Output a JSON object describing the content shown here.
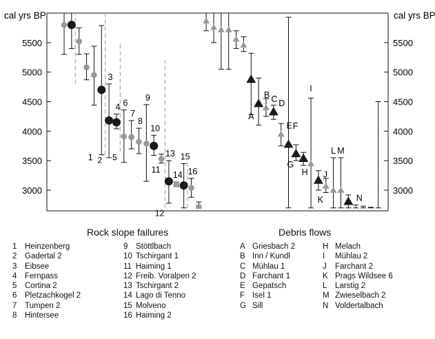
{
  "chart_data": {
    "type": "scatter",
    "y_unit_label": "cal yrs BP",
    "y_ticks": [
      3000,
      3500,
      4000,
      4500,
      5000,
      5500
    ],
    "ylim": [
      2650,
      6000
    ],
    "grid": false,
    "series": [
      {
        "name": "Rock slope failures",
        "points": [
          {
            "label": "",
            "x": 1,
            "y": 5800,
            "lo": 5300,
            "hi": 6000,
            "marker": "gray-circle"
          },
          {
            "label": "",
            "x": 2,
            "y": 5800,
            "lo": 5400,
            "hi": 6000,
            "marker": "black-circle"
          },
          {
            "label": "",
            "x": 3,
            "y": 5520,
            "lo": 5300,
            "hi": 5750,
            "marker": "gray-circle"
          },
          {
            "label": "",
            "x": 4,
            "y": 5080,
            "lo": 4870,
            "hi": 5310,
            "marker": "gray-circle"
          },
          {
            "label": "",
            "x": 5,
            "y": 4950,
            "lo": 4440,
            "hi": 5440,
            "marker": "gray-circle"
          },
          {
            "label": "1",
            "x": 6,
            "y": 4700,
            "lo": 3600,
            "hi": 5790,
            "marker": "black-circle"
          },
          {
            "label": "3",
            "x": 7,
            "y": 4180,
            "lo": 3550,
            "hi": 4800,
            "marker": "black-circle"
          },
          {
            "label": "4",
            "x": 8,
            "y": 4150,
            "lo": 4040,
            "hi": 4290,
            "marker": "black-circle"
          },
          {
            "label": "6",
            "x": 9,
            "y": 3910,
            "lo": 3470,
            "hi": 4360,
            "marker": "gray-circle"
          },
          {
            "label": "7",
            "x": 10,
            "y": 3900,
            "lo": 3700,
            "hi": 4180,
            "marker": "gray-circle"
          },
          {
            "label": "8",
            "x": 11,
            "y": 3820,
            "lo": 3620,
            "hi": 4050,
            "marker": "gray-circle"
          },
          {
            "label": "9",
            "x": 12,
            "y": 3790,
            "lo": 3150,
            "hi": 4450,
            "marker": "gray-circle"
          },
          {
            "label": "10",
            "x": 13,
            "y": 3750,
            "lo": 3590,
            "hi": 3930,
            "marker": "black-circle"
          },
          {
            "label": "11",
            "x": 14,
            "y": 3530,
            "lo": 3460,
            "hi": 3610,
            "marker": "gray-circle"
          },
          {
            "label": "13",
            "x": 15,
            "y": 3150,
            "lo": 2780,
            "hi": 3500,
            "marker": "black-circle"
          },
          {
            "label": "14",
            "x": 16,
            "y": 3100,
            "lo": 3060,
            "hi": 3140,
            "marker": "gray-circle"
          },
          {
            "label": "15",
            "x": 17,
            "y": 3080,
            "lo": 2700,
            "hi": 3450,
            "marker": "black-circle"
          },
          {
            "label": "16",
            "x": 18,
            "y": 3040,
            "lo": 2880,
            "hi": 3200,
            "marker": "gray-circle"
          },
          {
            "label": "",
            "x": 19,
            "y": 2720,
            "lo": 2700,
            "hi": 2800,
            "marker": "gray-square"
          }
        ]
      },
      {
        "name": "Debris flows",
        "points": [
          {
            "label": "",
            "x": 20,
            "y": 5870,
            "lo": 5700,
            "hi": 6000,
            "marker": "gray-triangle"
          },
          {
            "label": "",
            "x": 21,
            "y": 5760,
            "lo": 5500,
            "hi": 6000,
            "marker": "gray-triangle"
          },
          {
            "label": "",
            "x": 22,
            "y": 5720,
            "lo": 5050,
            "hi": 6000,
            "marker": "gray-triangle"
          },
          {
            "label": "",
            "x": 23,
            "y": 5720,
            "lo": 5050,
            "hi": 6000,
            "marker": "gray-triangle"
          },
          {
            "label": "",
            "x": 24,
            "y": 5560,
            "lo": 5400,
            "hi": 5700,
            "marker": "gray-triangle"
          },
          {
            "label": "",
            "x": 25,
            "y": 5460,
            "lo": 5350,
            "hi": 5600,
            "marker": "gray-triangle"
          },
          {
            "label": "A",
            "x": 26,
            "y": 4880,
            "lo": 4280,
            "hi": 5320,
            "marker": "black-triangle"
          },
          {
            "label": "B",
            "x": 27,
            "y": 4470,
            "lo": 4100,
            "hi": 4900,
            "marker": "black-triangle"
          },
          {
            "label": "C",
            "x": 28,
            "y": 4400,
            "lo": 4250,
            "hi": 4550,
            "marker": "gray-triangle"
          },
          {
            "label": "D",
            "x": 29,
            "y": 4330,
            "lo": 4200,
            "hi": 4440,
            "marker": "black-triangle"
          },
          {
            "label": "E",
            "x": 30,
            "y": 3950,
            "lo": 3750,
            "hi": 4130,
            "marker": "gray-triangle"
          },
          {
            "label": "F",
            "x": 31,
            "y": 3780,
            "lo": 2700,
            "hi": 5930,
            "marker": "black-triangle"
          },
          {
            "label": "G",
            "x": 32,
            "y": 3620,
            "lo": 3500,
            "hi": 3770,
            "marker": "black-triangle"
          },
          {
            "label": "H",
            "x": 33,
            "y": 3540,
            "lo": 3420,
            "hi": 3640,
            "marker": "black-triangle"
          },
          {
            "label": "I",
            "x": 34,
            "y": 3450,
            "lo": 2700,
            "hi": 4560,
            "marker": "gray-triangle"
          },
          {
            "label": "J",
            "x": 35,
            "y": 3170,
            "lo": 3000,
            "hi": 3330,
            "marker": "black-triangle"
          },
          {
            "label": "K",
            "x": 36,
            "y": 3070,
            "lo": 2960,
            "hi": 3200,
            "marker": "gray-triangle"
          },
          {
            "label": "L",
            "x": 37,
            "y": 3000,
            "lo": 2700,
            "hi": 3550,
            "marker": "gray-triangle"
          },
          {
            "label": "M",
            "x": 38,
            "y": 3000,
            "lo": 2700,
            "hi": 3550,
            "marker": "gray-triangle"
          },
          {
            "label": "N",
            "x": 39,
            "y": 2810,
            "lo": 2700,
            "hi": 2920,
            "marker": "black-triangle"
          },
          {
            "label": "",
            "x": 40,
            "y": null,
            "lo": 2700,
            "hi": 2750,
            "marker": "none"
          },
          {
            "label": "",
            "x": 41,
            "y": null,
            "lo": 2700,
            "hi": 2730,
            "marker": "none"
          },
          {
            "label": "",
            "x": 42,
            "y": null,
            "lo": 2700,
            "hi": 2710,
            "marker": "none"
          },
          {
            "label": "",
            "x": 43,
            "y": null,
            "lo": 2700,
            "hi": 4500,
            "marker": "none"
          }
        ]
      }
    ],
    "dashed_markers": [
      {
        "label": "",
        "x": 2.5,
        "lo": 4800,
        "hi": 6000
      },
      {
        "label": "2",
        "x": 6.5,
        "lo": 3600,
        "hi": 6000
      },
      {
        "label": "5",
        "x": 8.5,
        "lo": 3650,
        "hi": 5500
      },
      {
        "label": "12",
        "x": 14.5,
        "lo": 2700,
        "hi": 5200
      },
      {
        "label": "",
        "x": 17.5,
        "lo": 2700,
        "hi": 3500
      }
    ],
    "colors": {
      "black": "#1a1a1a",
      "gray": "#999999",
      "dash": "#aaaaaa"
    }
  },
  "legend": {
    "rock_title": "Rock slope failures",
    "debris_title": "Debris flows",
    "rock_col1": [
      {
        "code": "1",
        "name": "Heinzenberg"
      },
      {
        "code": "2",
        "name": "Gadertal 2"
      },
      {
        "code": "3",
        "name": "Eibsee"
      },
      {
        "code": "4",
        "name": "Fernpass"
      },
      {
        "code": "5",
        "name": "Cortina 2"
      },
      {
        "code": "6",
        "name": "Pletzachkogel 2"
      },
      {
        "code": "7",
        "name": "Tumpen 2"
      },
      {
        "code": "8",
        "name": "Hintersee"
      }
    ],
    "rock_col2": [
      {
        "code": "9",
        "name": "Stöttlbach"
      },
      {
        "code": "10",
        "name": "Tschirgant 1"
      },
      {
        "code": "11",
        "name": "Haiming 1"
      },
      {
        "code": "12",
        "name": "Freib. Voralpen 2"
      },
      {
        "code": "13",
        "name": "Tschirgant 2"
      },
      {
        "code": "14",
        "name": "Lago di Tenno"
      },
      {
        "code": "15",
        "name": "Molveno"
      },
      {
        "code": "16",
        "name": "Haiming 2"
      }
    ],
    "debris_col1": [
      {
        "code": "A",
        "name": "Griesbach 2"
      },
      {
        "code": "B",
        "name": "Inn / Kundl"
      },
      {
        "code": "C",
        "name": "Mühlau 1"
      },
      {
        "code": "D",
        "name": "Farchant 1"
      },
      {
        "code": "E",
        "name": "Gepatsch"
      },
      {
        "code": "F",
        "name": "Isel 1"
      },
      {
        "code": "G",
        "name": "Sill"
      }
    ],
    "debris_col2": [
      {
        "code": "H",
        "name": "Melach"
      },
      {
        "code": "I",
        "name": "Mühlau 2"
      },
      {
        "code": "J",
        "name": "Farchant 2"
      },
      {
        "code": "K",
        "name": "Prags Wildsee 6"
      },
      {
        "code": "L",
        "name": "Larstig 2"
      },
      {
        "code": "M",
        "name": "Zwieselbach 2"
      },
      {
        "code": "N",
        "name": "Voldertalbach"
      }
    ]
  }
}
